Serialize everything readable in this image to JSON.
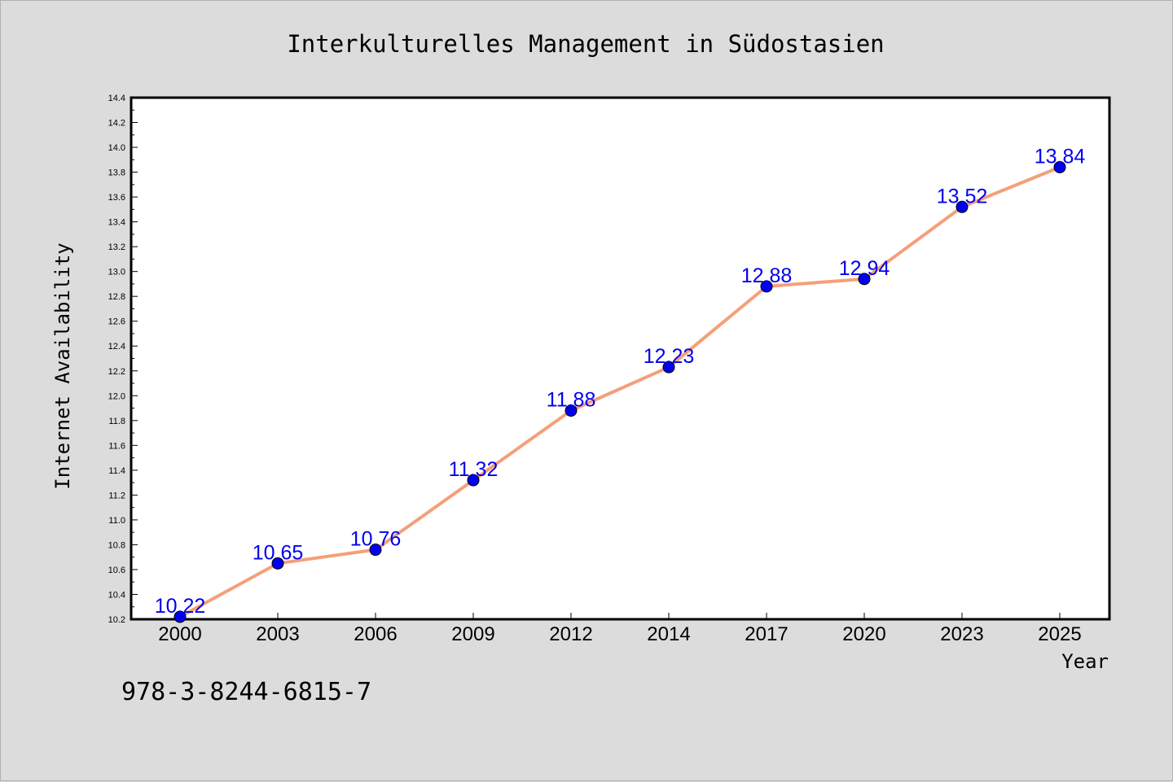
{
  "isbn": "978-3-8244-6815-7",
  "chart_data": {
    "type": "line",
    "title": "Interkulturelles Management in Südostasien",
    "xlabel": "Year",
    "ylabel": "Internet Availability",
    "categories": [
      "2000",
      "2003",
      "2006",
      "2009",
      "2012",
      "2014",
      "2017",
      "2020",
      "2023",
      "2025"
    ],
    "series": [
      {
        "values": [
          10.22,
          10.65,
          10.76,
          11.32,
          11.88,
          12.23,
          12.88,
          12.94,
          13.52,
          13.84
        ],
        "line_color": "#f4a07a",
        "marker_color": "#0000ee"
      }
    ],
    "data_labels": [
      "10.22",
      "10.65",
      "10.76",
      "11.32",
      "11.88",
      "12.23",
      "12.88",
      "12.94",
      "13.52",
      "13.84"
    ],
    "ylim": [
      10.2,
      14.4
    ],
    "yticks": [
      "10.2",
      "10.4",
      "10.6",
      "10.8",
      "11.0",
      "11.2",
      "11.4",
      "11.6",
      "11.8",
      "12.0",
      "12.2",
      "12.4",
      "12.6",
      "12.8",
      "13.0",
      "13.2",
      "13.4",
      "13.6",
      "13.8",
      "14.0",
      "14.2",
      "14.4"
    ],
    "grid": false,
    "legend": "none",
    "label_color": "#0000ee",
    "background": "#dcdcdc",
    "plot_background": "#ffffff"
  }
}
